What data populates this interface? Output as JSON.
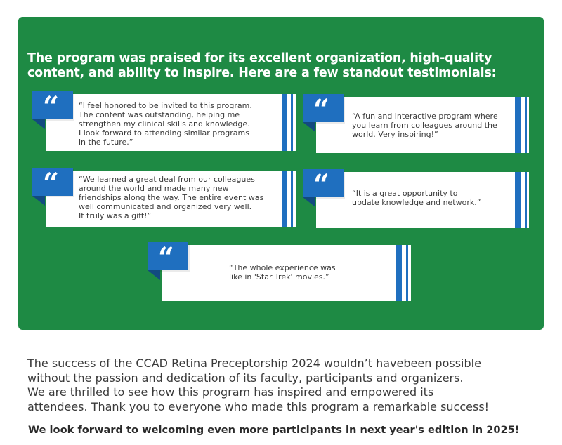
{
  "intro": {
    "text": "The program was praised for its excellent organization, high-quality content, and ability to inspire. Here are a few standout testimonials:"
  },
  "testimonials": [
    {
      "quote_icon": "quote-icon",
      "text": "“I feel honored to be invited to this program.\nThe content was outstanding, helping me\nstrengthen my clinical skills and knowledge.\nI look forward to attending similar programs\nin the future.”"
    },
    {
      "quote_icon": "quote-icon",
      "text": "“A fun and interactive program where\nyou learn from colleagues around the\nworld. Very inspiring!”"
    },
    {
      "quote_icon": "quote-icon",
      "text": " “We learned a great deal from our colleagues\naround the world and made many new\nfriendships along the way. The entire event was\nwell communicated and organized very well.\nIt truly was a gift!”"
    },
    {
      "quote_icon": "quote-icon",
      "text": "“It is a great opportunity to\nupdate knowledge and network.”"
    },
    {
      "quote_icon": "quote-icon",
      "text": "“The whole experience was\nlike in 'Star Trek' movies.”"
    }
  ],
  "closing": {
    "text": "The success of the CCAD Retina Preceptorship 2024 wouldn’t havebeen possible\nwithout the passion and dedication of its faculty, participants and organizers.\nWe are thrilled to see how this program has inspired and empowered its\nattendees. Thank you to everyone who made this program a remarkable success!"
  },
  "final": {
    "text": "We look forward to welcoming even more participants in next year's edition in 2025!"
  },
  "colors": {
    "panel_green": "#1e8a44",
    "accent_blue": "#1f6fbf",
    "card_white": "#ffffff"
  }
}
